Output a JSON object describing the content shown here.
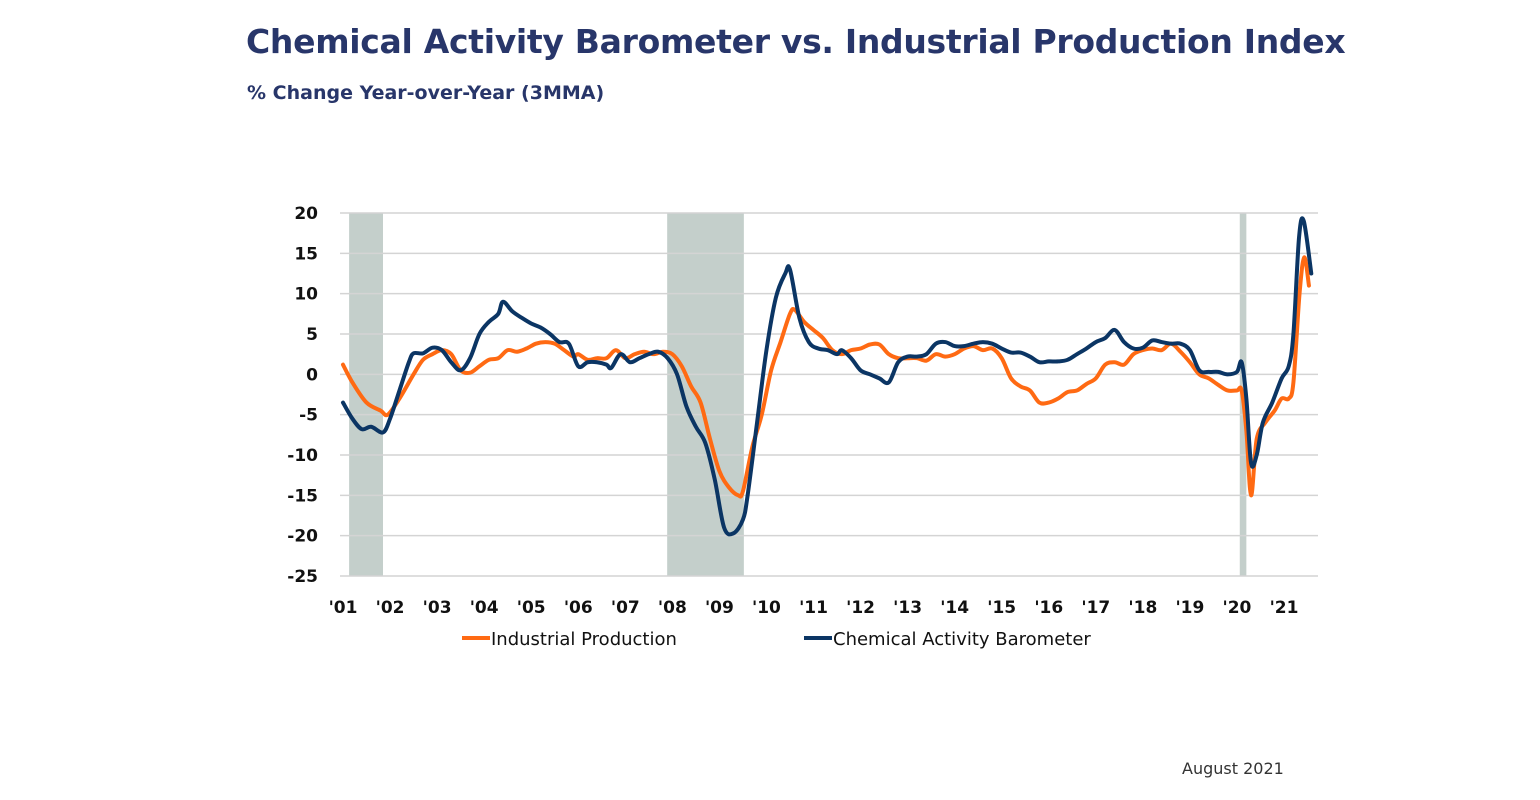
{
  "title": "Chemical Activity Barometer vs. Industrial Production Index",
  "subtitle": "% Change Year-over-Year (3MMA)",
  "footer": "August 2021",
  "colors": {
    "ip": "#ff6a13",
    "cab": "#0b3564",
    "recession": "#c4cfcb",
    "grid": "#d4d4d4"
  },
  "chart_data": {
    "type": "line",
    "title": "Chemical Activity Barometer vs. Industrial Production Index",
    "subtitle": "% Change Year-over-Year (3MMA)",
    "ylim": [
      -25,
      20
    ],
    "yticks": [
      20,
      15,
      10,
      5,
      0,
      -5,
      -10,
      -15,
      -20,
      -25
    ],
    "xlim": [
      2001,
      2021.7
    ],
    "xticks": [
      {
        "year": 2001,
        "label": "'01"
      },
      {
        "year": 2002,
        "label": "'02"
      },
      {
        "year": 2003,
        "label": "'03"
      },
      {
        "year": 2004,
        "label": "'04"
      },
      {
        "year": 2005,
        "label": "'05"
      },
      {
        "year": 2006,
        "label": "'06"
      },
      {
        "year": 2007,
        "label": "'07"
      },
      {
        "year": 2008,
        "label": "'08"
      },
      {
        "year": 2009,
        "label": "'09"
      },
      {
        "year": 2010,
        "label": "'10"
      },
      {
        "year": 2011,
        "label": "'11"
      },
      {
        "year": 2012,
        "label": "'12"
      },
      {
        "year": 2013,
        "label": "'13"
      },
      {
        "year": 2014,
        "label": "'14"
      },
      {
        "year": 2015,
        "label": "'15"
      },
      {
        "year": 2016,
        "label": "'16"
      },
      {
        "year": 2017,
        "label": "'17"
      },
      {
        "year": 2018,
        "label": "'18"
      },
      {
        "year": 2019,
        "label": "'19"
      },
      {
        "year": 2020,
        "label": "'20"
      },
      {
        "year": 2021,
        "label": "'21"
      }
    ],
    "grid": true,
    "legend": "bottom",
    "recessions": [
      [
        2001.13,
        2001.85
      ],
      [
        2007.89,
        2009.52
      ],
      [
        2020.06,
        2020.2
      ]
    ],
    "series": [
      {
        "name": "Industrial Production",
        "key": "ip",
        "points": [
          [
            2001.0,
            1.2
          ],
          [
            2001.2,
            -1
          ],
          [
            2001.5,
            -3.5
          ],
          [
            2001.8,
            -4.5
          ],
          [
            2001.95,
            -5
          ],
          [
            2002.2,
            -3
          ],
          [
            2002.5,
            0
          ],
          [
            2002.7,
            1.8
          ],
          [
            2002.9,
            2.5
          ],
          [
            2003.1,
            3
          ],
          [
            2003.3,
            2.5
          ],
          [
            2003.5,
            0.5
          ],
          [
            2003.7,
            0.2
          ],
          [
            2003.9,
            1
          ],
          [
            2004.1,
            1.8
          ],
          [
            2004.3,
            2
          ],
          [
            2004.5,
            3
          ],
          [
            2004.7,
            2.8
          ],
          [
            2004.9,
            3.2
          ],
          [
            2005.1,
            3.8
          ],
          [
            2005.3,
            4
          ],
          [
            2005.5,
            3.8
          ],
          [
            2005.7,
            3
          ],
          [
            2005.9,
            2.2
          ],
          [
            2006.0,
            2.5
          ],
          [
            2006.2,
            1.8
          ],
          [
            2006.4,
            2
          ],
          [
            2006.6,
            2
          ],
          [
            2006.8,
            3
          ],
          [
            2007.0,
            2
          ],
          [
            2007.2,
            2.5
          ],
          [
            2007.4,
            2.8
          ],
          [
            2007.6,
            2.5
          ],
          [
            2007.8,
            2.8
          ],
          [
            2008.0,
            2.5
          ],
          [
            2008.2,
            1
          ],
          [
            2008.4,
            -1.5
          ],
          [
            2008.6,
            -3.5
          ],
          [
            2008.8,
            -8
          ],
          [
            2009.0,
            -12
          ],
          [
            2009.2,
            -14
          ],
          [
            2009.4,
            -15
          ],
          [
            2009.5,
            -14.5
          ],
          [
            2009.7,
            -9
          ],
          [
            2009.9,
            -5
          ],
          [
            2010.1,
            0.5
          ],
          [
            2010.3,
            4
          ],
          [
            2010.5,
            7.5
          ],
          [
            2010.6,
            8
          ],
          [
            2010.8,
            6.5
          ],
          [
            2011.0,
            5.5
          ],
          [
            2011.2,
            4.5
          ],
          [
            2011.4,
            3
          ],
          [
            2011.6,
            2.5
          ],
          [
            2011.8,
            3
          ],
          [
            2012.0,
            3.2
          ],
          [
            2012.2,
            3.7
          ],
          [
            2012.4,
            3.7
          ],
          [
            2012.6,
            2.5
          ],
          [
            2012.8,
            2
          ],
          [
            2013.0,
            2
          ],
          [
            2013.2,
            2
          ],
          [
            2013.4,
            1.7
          ],
          [
            2013.6,
            2.5
          ],
          [
            2013.8,
            2.2
          ],
          [
            2014.0,
            2.5
          ],
          [
            2014.2,
            3.2
          ],
          [
            2014.4,
            3.5
          ],
          [
            2014.6,
            3
          ],
          [
            2014.8,
            3.2
          ],
          [
            2015.0,
            2
          ],
          [
            2015.2,
            -0.5
          ],
          [
            2015.4,
            -1.5
          ],
          [
            2015.6,
            -2
          ],
          [
            2015.8,
            -3.5
          ],
          [
            2016.0,
            -3.5
          ],
          [
            2016.2,
            -3
          ],
          [
            2016.4,
            -2.2
          ],
          [
            2016.6,
            -2
          ],
          [
            2016.8,
            -1.2
          ],
          [
            2017.0,
            -0.5
          ],
          [
            2017.2,
            1.2
          ],
          [
            2017.4,
            1.5
          ],
          [
            2017.6,
            1.2
          ],
          [
            2017.8,
            2.5
          ],
          [
            2018.0,
            3
          ],
          [
            2018.2,
            3.2
          ],
          [
            2018.4,
            3
          ],
          [
            2018.6,
            3.8
          ],
          [
            2018.8,
            2.8
          ],
          [
            2019.0,
            1.5
          ],
          [
            2019.2,
            0
          ],
          [
            2019.4,
            -0.5
          ],
          [
            2019.6,
            -1.3
          ],
          [
            2019.8,
            -2
          ],
          [
            2020.0,
            -2
          ],
          [
            2020.1,
            -2
          ],
          [
            2020.2,
            -7
          ],
          [
            2020.3,
            -15
          ],
          [
            2020.42,
            -8
          ],
          [
            2020.6,
            -6
          ],
          [
            2020.8,
            -4.5
          ],
          [
            2020.95,
            -3
          ],
          [
            2021.1,
            -3
          ],
          [
            2021.2,
            -1
          ],
          [
            2021.33,
            10
          ],
          [
            2021.43,
            14.5
          ],
          [
            2021.53,
            11
          ]
        ]
      },
      {
        "name": "Chemical Activity Barometer",
        "key": "cab",
        "points": [
          [
            2001.0,
            -3.5
          ],
          [
            2001.2,
            -5.5
          ],
          [
            2001.4,
            -6.8
          ],
          [
            2001.6,
            -6.5
          ],
          [
            2001.85,
            -7.2
          ],
          [
            2002.0,
            -5.5
          ],
          [
            2002.2,
            -2
          ],
          [
            2002.4,
            1.5
          ],
          [
            2002.5,
            2.6
          ],
          [
            2002.7,
            2.6
          ],
          [
            2002.9,
            3.3
          ],
          [
            2003.1,
            3
          ],
          [
            2003.3,
            1.5
          ],
          [
            2003.5,
            0.5
          ],
          [
            2003.7,
            2
          ],
          [
            2003.9,
            5
          ],
          [
            2004.1,
            6.5
          ],
          [
            2004.3,
            7.5
          ],
          [
            2004.4,
            9
          ],
          [
            2004.6,
            7.8
          ],
          [
            2004.8,
            7
          ],
          [
            2005.0,
            6.3
          ],
          [
            2005.2,
            5.8
          ],
          [
            2005.4,
            5
          ],
          [
            2005.6,
            4
          ],
          [
            2005.8,
            3.8
          ],
          [
            2006.0,
            1
          ],
          [
            2006.2,
            1.5
          ],
          [
            2006.4,
            1.5
          ],
          [
            2006.6,
            1.2
          ],
          [
            2006.7,
            0.8
          ],
          [
            2006.9,
            2.5
          ],
          [
            2007.1,
            1.5
          ],
          [
            2007.3,
            2
          ],
          [
            2007.5,
            2.5
          ],
          [
            2007.7,
            2.8
          ],
          [
            2007.9,
            2
          ],
          [
            2008.1,
            0
          ],
          [
            2008.3,
            -4
          ],
          [
            2008.5,
            -6.5
          ],
          [
            2008.7,
            -8.5
          ],
          [
            2008.9,
            -13
          ],
          [
            2009.1,
            -19
          ],
          [
            2009.3,
            -19.7
          ],
          [
            2009.5,
            -18
          ],
          [
            2009.6,
            -15
          ],
          [
            2009.8,
            -6
          ],
          [
            2010.0,
            3
          ],
          [
            2010.2,
            9.5
          ],
          [
            2010.4,
            12.5
          ],
          [
            2010.5,
            13
          ],
          [
            2010.7,
            7
          ],
          [
            2010.9,
            4
          ],
          [
            2011.1,
            3.2
          ],
          [
            2011.3,
            3
          ],
          [
            2011.5,
            2.5
          ],
          [
            2011.6,
            3
          ],
          [
            2011.8,
            2
          ],
          [
            2012.0,
            0.5
          ],
          [
            2012.2,
            0
          ],
          [
            2012.4,
            -0.5
          ],
          [
            2012.6,
            -1
          ],
          [
            2012.8,
            1.5
          ],
          [
            2013.0,
            2.2
          ],
          [
            2013.2,
            2.2
          ],
          [
            2013.4,
            2.5
          ],
          [
            2013.6,
            3.8
          ],
          [
            2013.8,
            4
          ],
          [
            2014.0,
            3.5
          ],
          [
            2014.2,
            3.5
          ],
          [
            2014.4,
            3.8
          ],
          [
            2014.6,
            4
          ],
          [
            2014.8,
            3.8
          ],
          [
            2015.0,
            3.2
          ],
          [
            2015.2,
            2.7
          ],
          [
            2015.4,
            2.7
          ],
          [
            2015.6,
            2.2
          ],
          [
            2015.8,
            1.5
          ],
          [
            2016.0,
            1.6
          ],
          [
            2016.2,
            1.6
          ],
          [
            2016.4,
            1.8
          ],
          [
            2016.6,
            2.5
          ],
          [
            2016.8,
            3.2
          ],
          [
            2017.0,
            4
          ],
          [
            2017.2,
            4.5
          ],
          [
            2017.4,
            5.5
          ],
          [
            2017.6,
            4
          ],
          [
            2017.8,
            3.2
          ],
          [
            2018.0,
            3.3
          ],
          [
            2018.2,
            4.2
          ],
          [
            2018.4,
            4
          ],
          [
            2018.6,
            3.8
          ],
          [
            2018.8,
            3.8
          ],
          [
            2019.0,
            3
          ],
          [
            2019.2,
            0.5
          ],
          [
            2019.4,
            0.3
          ],
          [
            2019.6,
            0.3
          ],
          [
            2019.8,
            0
          ],
          [
            2020.0,
            0.3
          ],
          [
            2020.1,
            1.5
          ],
          [
            2020.2,
            -3
          ],
          [
            2020.3,
            -11
          ],
          [
            2020.42,
            -10
          ],
          [
            2020.55,
            -6
          ],
          [
            2020.75,
            -3.5
          ],
          [
            2020.95,
            -0.5
          ],
          [
            2021.1,
            1
          ],
          [
            2021.2,
            5
          ],
          [
            2021.32,
            17
          ],
          [
            2021.42,
            19
          ],
          [
            2021.58,
            12.5
          ]
        ]
      }
    ]
  }
}
